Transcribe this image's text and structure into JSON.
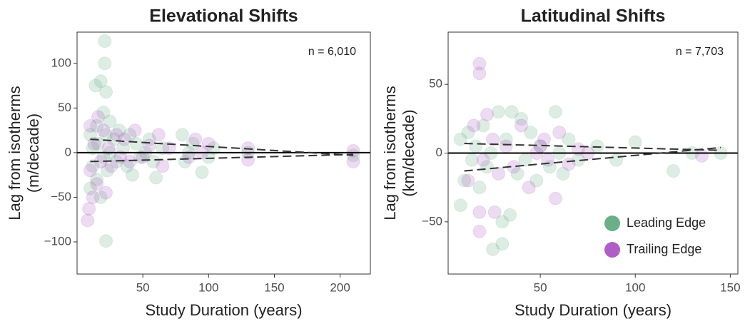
{
  "chart_data": [
    {
      "type": "scatter",
      "title": "Elevational Shifts",
      "xlabel": "Study Duration (years)",
      "ylabel": [
        "Lag from isotherms",
        "(m/decade)"
      ],
      "annotation": "n = 6,010",
      "xlim": [
        0,
        223
      ],
      "ylim": [
        -136,
        135
      ],
      "xticks": [
        50,
        100,
        150,
        200
      ],
      "yticks": [
        {
          "value": -100,
          "label": "−100"
        },
        {
          "value": -50,
          "label": "−50"
        },
        0,
        50,
        100
      ],
      "zero_line": true,
      "series": [
        {
          "color": "#5aa67a",
          "x": [
            10,
            10,
            12,
            12,
            14,
            15,
            15,
            16,
            18,
            18,
            20,
            20,
            21,
            21,
            22,
            22,
            22,
            23,
            25,
            25,
            28,
            30,
            32,
            35,
            38,
            40,
            42,
            45,
            48,
            52,
            55,
            58,
            60,
            65,
            80,
            82,
            85,
            88,
            95,
            100,
            104,
            130,
            210
          ],
          "y": [
            -40,
            20,
            5,
            -15,
            75,
            30,
            -30,
            10,
            80,
            -50,
            45,
            -5,
            125,
            100,
            68,
            -99,
            20,
            -20,
            35,
            0,
            15,
            -10,
            25,
            5,
            -15,
            20,
            -25,
            10,
            -5,
            0,
            15,
            -10,
            -28,
            5,
            20,
            -10,
            0,
            10,
            -22,
            -5,
            5,
            0,
            -3
          ]
        },
        {
          "color": "#a64cc0",
          "x": [
            8,
            9,
            10,
            10,
            12,
            13,
            15,
            16,
            18,
            20,
            22,
            24,
            26,
            30,
            33,
            36,
            40,
            44,
            50,
            55,
            62,
            65,
            70,
            85,
            90,
            95,
            100,
            130,
            130,
            210,
            210
          ],
          "y": [
            -76,
            -63,
            30,
            -20,
            -50,
            10,
            -35,
            40,
            -10,
            25,
            -45,
            5,
            -15,
            20,
            -5,
            15,
            -10,
            25,
            -5,
            8,
            20,
            -15,
            5,
            -5,
            15,
            0,
            10,
            5,
            -8,
            -10,
            2
          ]
        }
      ],
      "trend_lines": [
        {
          "x": [
            10,
            210
          ],
          "y": [
            15,
            -3
          ]
        },
        {
          "x": [
            10,
            210
          ],
          "y": [
            -10,
            -2
          ]
        }
      ]
    },
    {
      "type": "scatter",
      "title": "Latitudinal Shifts",
      "xlabel": "Study Duration (years)",
      "ylabel": [
        "Lag from isotherms",
        "(km/decade)"
      ],
      "annotation": "n = 7,703",
      "xlim": [
        1.5,
        154
      ],
      "ylim": [
        -88,
        88
      ],
      "xticks": [
        50,
        100,
        150
      ],
      "yticks": [
        {
          "value": -50,
          "label": "−50"
        },
        0,
        50
      ],
      "zero_line": true,
      "legend": "bottom-right",
      "series": [
        {
          "name": "Leading Edge",
          "color": "#5aa67a",
          "x": [
            8,
            8,
            10,
            12,
            14,
            16,
            18,
            20,
            22,
            24,
            25,
            28,
            30,
            30,
            32,
            34,
            35,
            38,
            40,
            42,
            45,
            48,
            50,
            55,
            58,
            60,
            62,
            65,
            70,
            80,
            90,
            100,
            120,
            130,
            145
          ],
          "y": [
            -38,
            10,
            -20,
            15,
            -5,
            5,
            -25,
            20,
            -10,
            0,
            -70,
            30,
            -66,
            -50,
            10,
            -45,
            30,
            -15,
            25,
            -5,
            15,
            -20,
            5,
            -10,
            30,
            0,
            -15,
            10,
            -5,
            5,
            -5,
            8,
            -13,
            0,
            0
          ]
        },
        {
          "name": "Trailing Edge",
          "color": "#a64cc0",
          "x": [
            12,
            15,
            18,
            18,
            18,
            18,
            20,
            22,
            25,
            26,
            28,
            32,
            36,
            40,
            44,
            48,
            50,
            52,
            54,
            58,
            60,
            65,
            70,
            75,
            135
          ],
          "y": [
            -20,
            20,
            65,
            58,
            -57,
            -43,
            -5,
            28,
            10,
            -43,
            -15,
            5,
            -10,
            20,
            -25,
            0,
            5,
            10,
            -5,
            -33,
            15,
            -8,
            3,
            0,
            -2
          ]
        }
      ],
      "trend_lines": [
        {
          "x": [
            10,
            145
          ],
          "y": [
            7,
            2
          ]
        },
        {
          "x": [
            10,
            145
          ],
          "y": [
            -13,
            4
          ]
        }
      ]
    }
  ]
}
